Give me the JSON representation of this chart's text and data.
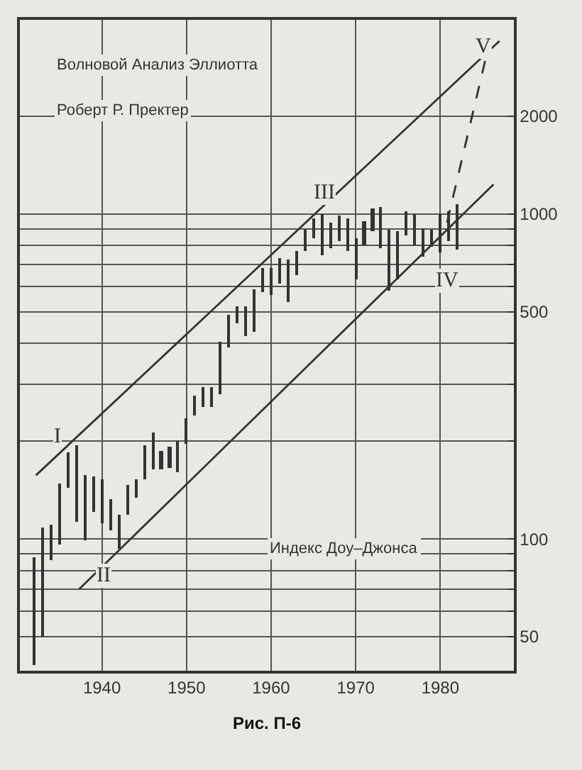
{
  "chart_data": {
    "type": "bar",
    "title": "Волновой Анализ Эллиотта",
    "subtitle": "Роберт Р. Пректер",
    "x": [
      1932,
      1933,
      1934,
      1935,
      1936,
      1937,
      1938,
      1939,
      1940,
      1941,
      1942,
      1943,
      1944,
      1945,
      1946,
      1947,
      1948,
      1949,
      1950,
      1951,
      1952,
      1953,
      1954,
      1955,
      1956,
      1957,
      1958,
      1959,
      1960,
      1961,
      1962,
      1963,
      1964,
      1965,
      1966,
      1967,
      1968,
      1969,
      1970,
      1971,
      1972,
      1973,
      1974,
      1975,
      1976,
      1977,
      1978,
      1979,
      1980,
      1981,
      1982
    ],
    "series": [
      {
        "base": [
          41,
          50,
          86,
          96,
          143,
          113,
          99,
          121,
          112,
          106,
          93,
          119,
          134,
          152,
          163,
          163,
          165,
          161,
          197,
          239,
          256,
          255,
          280,
          388,
          462,
          420,
          436,
          574,
          566,
          610,
          536,
          647,
          766,
          840,
          744,
          786,
          825,
          770,
          631,
          798,
          889,
          788,
          578,
          632,
          859,
          801,
          742,
          797,
          759,
          824,
          777
        ],
        "color": "#333333",
        "values": [
          47,
          58,
          25,
          52,
          41,
          81,
          59,
          35,
          40,
          27,
          26,
          27,
          19,
          43,
          50,
          24,
          28,
          40,
          38,
          37,
          36,
          39,
          124,
          100,
          59,
          101,
          148,
          105,
          119,
          125,
          190,
          120,
          125,
          129,
          251,
          157,
          160,
          198,
          211,
          153,
          147,
          264,
          314,
          250,
          156,
          199,
          166,
          100,
          241,
          200,
          293
        ]
      },
      {
        "type": "line",
        "color": "#333333",
        "x": [
          1932.2,
          1987
        ],
        "values": [
          157,
          3410
        ],
        "line_style": "solid"
      },
      {
        "type": "line",
        "color": "#333333",
        "x": [
          1937.3,
          1986.3
        ],
        "values": [
          70,
          1235
        ],
        "line_style": "solid"
      },
      {
        "type": "line",
        "color": "#333333",
        "x": [
          1980.8,
          1985.3
        ],
        "values": [
          942,
          2960
        ],
        "line_style": "dashed"
      }
    ],
    "log": "y",
    "xlim": [
      1930.3,
      1988.7
    ],
    "ylim": [
      39.3,
      3960
    ],
    "xticks": [
      1940,
      1950,
      1960,
      1970,
      1980
    ],
    "yticks": [
      50,
      {
        "value": 60,
        "label": null
      },
      {
        "value": 70,
        "label": null
      },
      {
        "value": 80,
        "label": null
      },
      {
        "value": 90,
        "label": null
      },
      100,
      {
        "value": 200,
        "label": null
      },
      {
        "value": 300,
        "label": null
      },
      {
        "value": 400,
        "label": null
      },
      500,
      {
        "value": 600,
        "label": null
      },
      {
        "value": 700,
        "label": null
      },
      {
        "value": 800,
        "label": null
      },
      {
        "value": 900,
        "label": null
      },
      1000,
      2000
    ],
    "grid": true,
    "annotations": [
      "Индекс Доу–Джонса",
      "Рис. П-6",
      "I",
      "II",
      "III",
      "IV",
      "V"
    ]
  }
}
